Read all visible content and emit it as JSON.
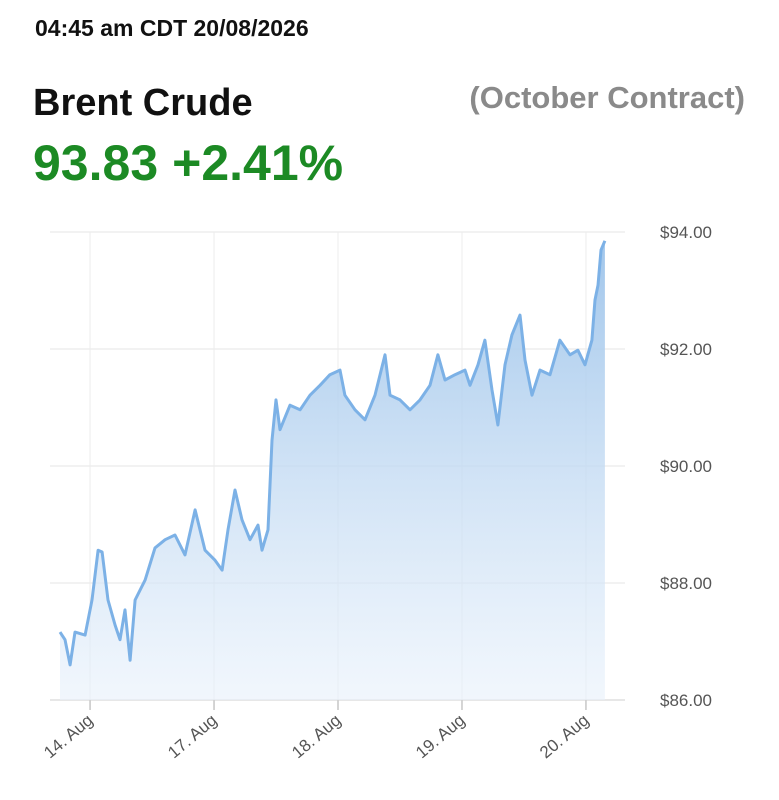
{
  "header": {
    "timestamp": "04:45 am CDT 20/08/2026"
  },
  "chart_data": {
    "type": "area",
    "title": "Brent Crude",
    "subtitle": "(October Contract)",
    "price": "93.83",
    "change": "+2.41%",
    "x": [
      -0.242,
      -0.202,
      -0.161,
      -0.121,
      -0.04,
      0.016,
      0.065,
      0.097,
      0.145,
      0.202,
      0.242,
      0.282,
      0.323,
      0.363,
      0.444,
      0.524,
      0.605,
      0.685,
      0.766,
      0.847,
      0.927,
      1.008,
      1.065,
      1.113,
      1.169,
      1.226,
      1.29,
      1.355,
      1.387,
      1.435,
      1.468,
      1.5,
      1.532,
      1.613,
      1.694,
      1.774,
      1.855,
      1.935,
      2.016,
      2.056,
      2.137,
      2.218,
      2.298,
      2.379,
      2.419,
      2.5,
      2.581,
      2.661,
      2.742,
      2.806,
      2.863,
      2.944,
      3.024,
      3.065,
      3.129,
      3.185,
      3.242,
      3.29,
      3.347,
      3.403,
      3.468,
      3.508,
      3.565,
      3.629,
      3.71,
      3.79,
      3.871,
      3.935,
      3.992,
      4.048,
      4.073,
      4.097,
      4.121,
      4.153
    ],
    "series": [
      {
        "color": "#7cb1e6",
        "values": [
          87.16,
          87.03,
          86.6,
          87.16,
          87.11,
          87.71,
          88.56,
          88.53,
          87.71,
          87.28,
          87.03,
          87.54,
          86.68,
          87.71,
          88.05,
          88.6,
          88.74,
          88.82,
          88.48,
          89.25,
          88.56,
          88.39,
          88.22,
          88.91,
          89.59,
          89.08,
          88.74,
          88.99,
          88.56,
          88.91,
          90.44,
          91.13,
          90.62,
          91.04,
          90.96,
          91.21,
          91.38,
          91.56,
          91.64,
          91.21,
          90.96,
          90.79,
          91.21,
          91.9,
          91.21,
          91.13,
          90.96,
          91.13,
          91.38,
          91.9,
          91.47,
          91.56,
          91.64,
          91.38,
          91.73,
          92.15,
          91.3,
          90.7,
          91.73,
          92.24,
          92.58,
          91.81,
          91.21,
          91.64,
          91.56,
          92.15,
          91.9,
          91.98,
          91.73,
          92.15,
          92.84,
          93.09,
          93.69,
          93.85
        ]
      }
    ],
    "xlim": [
      -0.323,
      4.21
    ],
    "xticks": [
      {
        "value": 0,
        "label": "14. Aug"
      },
      {
        "value": 1,
        "label": "17. Aug"
      },
      {
        "value": 2,
        "label": "18. Aug"
      },
      {
        "value": 3,
        "label": "19. Aug"
      },
      {
        "value": 4,
        "label": "20. Aug"
      }
    ],
    "ylim": [
      86,
      94
    ],
    "yticks": [
      {
        "value": 86,
        "label": "$86.00"
      },
      {
        "value": 88,
        "label": "$88.00"
      },
      {
        "value": 90,
        "label": "$90.00"
      },
      {
        "value": 92,
        "label": "$92.00"
      },
      {
        "value": 94,
        "label": "$94.00"
      }
    ],
    "grid": true
  }
}
